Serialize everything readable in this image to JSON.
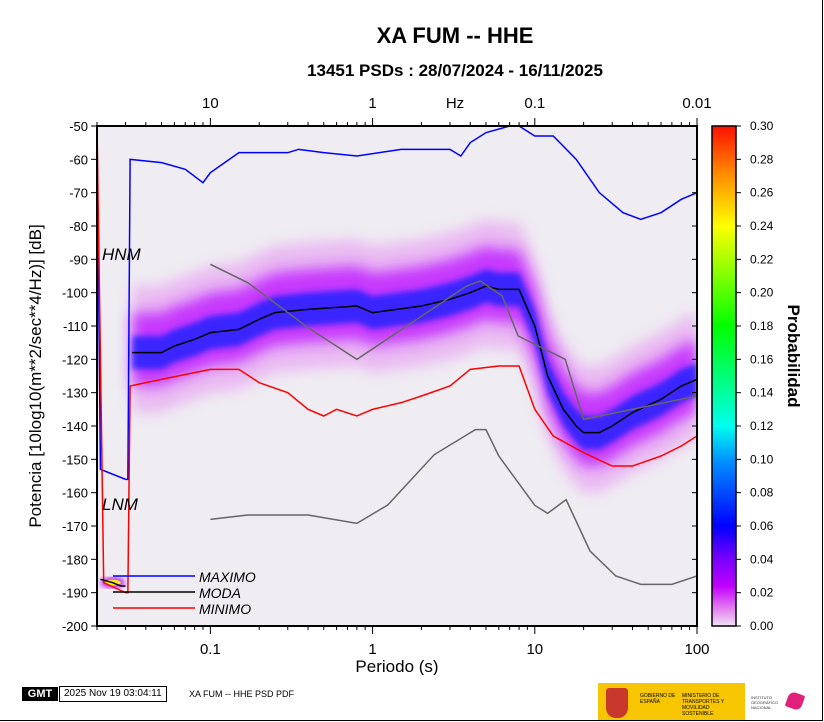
{
  "title": "XA FUM -- HHE",
  "subtitle": "13451 PSDs : 28/07/2024 - 16/11/2025",
  "footer": {
    "gmt_logo": "GMT",
    "timestamp": "2025 Nov 19 03:04:11",
    "caption": "XA FUM -- HHE PSD PDF",
    "gov_logo_text": "GOBIERNO DE ESPAÑA",
    "ministry_text": "MINISTERIO DE TRANSPORTES Y MOVILIDAD SOSTENIBLE",
    "institute_text": "INSTITUTO GEOGRÁFICO NACIONAL"
  },
  "colors": {
    "maximo": "#0000ff",
    "moda": "#000000",
    "minimo": "#ff0000",
    "noise_models": "#666666",
    "plot_bg": "#efecf2"
  },
  "chart_data": {
    "type": "heatmap",
    "xlabel": "Periodo (s)",
    "ylabel": "Potencia [10log10(m**2/sec**4/Hz)] [dB]",
    "x_scale": "log",
    "xlim": [
      0.02,
      100
    ],
    "ylim": [
      -200,
      -50
    ],
    "x_ticks": [
      "0.1",
      "1",
      "10",
      "100"
    ],
    "y_ticks": [
      "-50",
      "-60",
      "-70",
      "-80",
      "-90",
      "-100",
      "-110",
      "-120",
      "-130",
      "-140",
      "-150",
      "-160",
      "-170",
      "-180",
      "-190",
      "-200"
    ],
    "top_axis": {
      "label": "Hz",
      "ticks": [
        "10",
        "1",
        "0.1",
        "0.01"
      ]
    },
    "colorbar": {
      "label": "Probabilidad",
      "range": [
        0,
        0.3
      ],
      "ticks": [
        "0.00",
        "0.02",
        "0.04",
        "0.06",
        "0.08",
        "0.10",
        "0.12",
        "0.14",
        "0.16",
        "0.18",
        "0.20",
        "0.22",
        "0.24",
        "0.26",
        "0.28",
        "0.30"
      ]
    },
    "annotations": [
      "HNM",
      "LNM"
    ],
    "legend": [
      "MAXIMO",
      "MODA",
      "MINIMO"
    ],
    "series": [
      {
        "name": "MAXIMO",
        "points": [
          [
            0.02,
            -50
          ],
          [
            0.021,
            -153
          ],
          [
            0.03,
            -156
          ],
          [
            0.031,
            -156
          ],
          [
            0.032,
            -60
          ],
          [
            0.05,
            -61
          ],
          [
            0.07,
            -63
          ],
          [
            0.09,
            -67
          ],
          [
            0.1,
            -64
          ],
          [
            0.15,
            -58
          ],
          [
            0.3,
            -58
          ],
          [
            0.35,
            -57
          ],
          [
            0.5,
            -58
          ],
          [
            0.8,
            -59
          ],
          [
            1.5,
            -57
          ],
          [
            3,
            -57
          ],
          [
            3.5,
            -59
          ],
          [
            4,
            -55
          ],
          [
            5,
            -52
          ],
          [
            7,
            -50
          ],
          [
            8,
            -50
          ],
          [
            10,
            -53
          ],
          [
            13,
            -53
          ],
          [
            18,
            -60
          ],
          [
            25,
            -70
          ],
          [
            35,
            -76
          ],
          [
            45,
            -78
          ],
          [
            60,
            -76
          ],
          [
            80,
            -72
          ],
          [
            100,
            -70
          ]
        ]
      },
      {
        "name": "MODA",
        "points": [
          [
            0.033,
            -118
          ],
          [
            0.05,
            -118
          ],
          [
            0.06,
            -116
          ],
          [
            0.08,
            -114
          ],
          [
            0.1,
            -112
          ],
          [
            0.15,
            -111
          ],
          [
            0.2,
            -108
          ],
          [
            0.25,
            -106
          ],
          [
            0.4,
            -105
          ],
          [
            0.8,
            -104
          ],
          [
            1,
            -106
          ],
          [
            2,
            -104
          ],
          [
            3,
            -102
          ],
          [
            4,
            -100
          ],
          [
            5,
            -98
          ],
          [
            6,
            -99
          ],
          [
            8,
            -99
          ],
          [
            10,
            -110
          ],
          [
            12,
            -125
          ],
          [
            15,
            -135
          ],
          [
            18,
            -140
          ],
          [
            20,
            -142
          ],
          [
            25,
            -142
          ],
          [
            30,
            -140
          ],
          [
            40,
            -136
          ],
          [
            60,
            -132
          ],
          [
            80,
            -128
          ],
          [
            100,
            -126
          ]
        ]
      },
      {
        "name": "MINIMO",
        "points": [
          [
            0.02,
            -50
          ],
          [
            0.022,
            -187
          ],
          [
            0.03,
            -190
          ],
          [
            0.031,
            -190
          ],
          [
            0.032,
            -128
          ],
          [
            0.05,
            -126
          ],
          [
            0.1,
            -123
          ],
          [
            0.15,
            -123
          ],
          [
            0.2,
            -127
          ],
          [
            0.3,
            -130
          ],
          [
            0.4,
            -135
          ],
          [
            0.5,
            -137
          ],
          [
            0.6,
            -135
          ],
          [
            0.8,
            -137
          ],
          [
            1,
            -135
          ],
          [
            1.5,
            -133
          ],
          [
            2,
            -131
          ],
          [
            3,
            -128
          ],
          [
            4,
            -123
          ],
          [
            6,
            -122
          ],
          [
            8,
            -122
          ],
          [
            10,
            -135
          ],
          [
            13,
            -143
          ],
          [
            20,
            -148
          ],
          [
            30,
            -152
          ],
          [
            40,
            -152
          ],
          [
            60,
            -149
          ],
          [
            80,
            -146
          ],
          [
            100,
            -143
          ]
        ]
      },
      {
        "name": "HNM",
        "points": [
          [
            0.1,
            -91.5
          ],
          [
            0.17,
            -97
          ],
          [
            0.4,
            -110.5
          ],
          [
            0.8,
            -120
          ],
          [
            3.8,
            -98
          ],
          [
            4.6,
            -96.5
          ],
          [
            6.3,
            -101
          ],
          [
            7.9,
            -113
          ],
          [
            15.4,
            -120
          ],
          [
            20,
            -138
          ],
          [
            100,
            -131
          ]
        ]
      },
      {
        "name": "LNM",
        "points": [
          [
            0.1,
            -168
          ],
          [
            0.17,
            -166.7
          ],
          [
            0.4,
            -166.7
          ],
          [
            0.8,
            -169.2
          ],
          [
            1.24,
            -163.7
          ],
          [
            2.4,
            -148.6
          ],
          [
            4.3,
            -141.1
          ],
          [
            5,
            -141.1
          ],
          [
            6,
            -149
          ],
          [
            10,
            -163.8
          ],
          [
            12,
            -166.2
          ],
          [
            15.6,
            -162.1
          ],
          [
            21.9,
            -177.5
          ],
          [
            31.6,
            -185
          ],
          [
            45,
            -187.5
          ],
          [
            70,
            -187.5
          ],
          [
            100,
            -185
          ]
        ]
      }
    ]
  }
}
